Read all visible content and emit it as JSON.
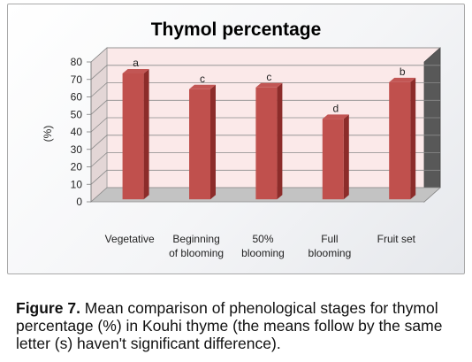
{
  "chart_data": {
    "type": "bar",
    "title": "Thymol percentage",
    "ylabel": "(%)",
    "xlabel": "",
    "ylim": [
      0,
      80
    ],
    "yticks": [
      0,
      10,
      20,
      30,
      40,
      50,
      60,
      70,
      80
    ],
    "categories": [
      "Vegetative",
      "Beginning of blooming",
      "50% blooming",
      "Full blooming",
      "Fruit set"
    ],
    "category_lines": [
      [
        "Vegetative"
      ],
      [
        "Beginning",
        "of blooming"
      ],
      [
        "50%",
        "blooming"
      ],
      [
        "Full",
        "blooming"
      ],
      [
        "Fruit set"
      ]
    ],
    "values": [
      72,
      63,
      64,
      46,
      67
    ],
    "letters": [
      "a",
      "c",
      "c",
      "d",
      "b"
    ],
    "grid": true,
    "legend": "none",
    "bar_color": "#c0504d"
  },
  "caption": {
    "label": "Figure 7.",
    "text": " Mean comparison of phenological stages for thymol percentage (%) in Kouhi thyme (the means follow by the same letter (s) haven't significant difference)."
  }
}
